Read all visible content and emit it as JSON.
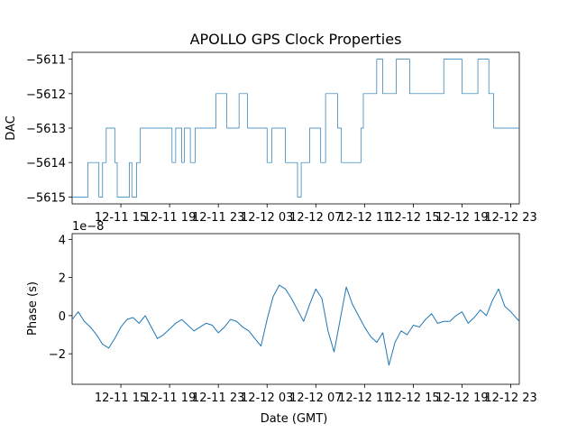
{
  "chart_data": [
    {
      "type": "line",
      "title": "APOLLO GPS Clock Properties",
      "ylabel": "DAC",
      "xlabel": "",
      "x_tick_labels": [
        "12-11 15",
        "12-11 19",
        "12-11 23",
        "12-12 03",
        "12-12 07",
        "12-12 11",
        "12-12 15",
        "12-12 19",
        "12-12 23"
      ],
      "x_ticks_hours": [
        15,
        19,
        23,
        27,
        31,
        35,
        39,
        43,
        47
      ],
      "xlim_hours": [
        11.0,
        47.7
      ],
      "y_ticks": [
        -5611,
        -5612,
        -5613,
        -5614,
        -5615
      ],
      "y_tick_labels": [
        "−5611",
        "−5612",
        "−5613",
        "−5614",
        "−5615"
      ],
      "ylim": [
        -5615.2,
        -5610.8
      ],
      "color": "#1f77b4",
      "series": [
        {
          "x": [
            11.0,
            12.3,
            12.3,
            13.2,
            13.2,
            13.5,
            13.5,
            13.8,
            13.8,
            14.5,
            14.5,
            14.7,
            14.7,
            15.7,
            15.7,
            15.9,
            15.9,
            16.3,
            16.3,
            16.6,
            16.6,
            19.2,
            19.2,
            19.5,
            19.5,
            20.0,
            20.0,
            20.2,
            20.2,
            20.7,
            20.7,
            21.1,
            21.1,
            22.8,
            22.8,
            23.7,
            23.7,
            24.7,
            24.7,
            25.4,
            25.4,
            27.0,
            27.0,
            27.4,
            27.4,
            28.5,
            28.5,
            29.5,
            29.5,
            29.8,
            29.8,
            30.5,
            30.5,
            31.4,
            31.4,
            31.8,
            31.8,
            32.8,
            32.8,
            33.1,
            33.1,
            34.7,
            34.7,
            34.9,
            34.9,
            36.0,
            36.0,
            36.5,
            36.5,
            37.6,
            37.6,
            38.7,
            38.7,
            41.5,
            41.5,
            43.0,
            43.0,
            44.3,
            44.3,
            45.2,
            45.2,
            45.6,
            45.6,
            47.7
          ],
          "values": [
            -5615,
            -5615,
            -5614,
            -5614,
            -5615,
            -5615,
            -5614,
            -5614,
            -5613,
            -5613,
            -5614,
            -5614,
            -5615,
            -5615,
            -5614,
            -5614,
            -5615,
            -5615,
            -5614,
            -5614,
            -5613,
            -5613,
            -5614,
            -5614,
            -5613,
            -5613,
            -5614,
            -5614,
            -5613,
            -5613,
            -5614,
            -5614,
            -5613,
            -5613,
            -5612,
            -5612,
            -5613,
            -5613,
            -5612,
            -5612,
            -5613,
            -5613,
            -5614,
            -5614,
            -5613,
            -5613,
            -5614,
            -5614,
            -5615,
            -5615,
            -5614,
            -5614,
            -5613,
            -5613,
            -5614,
            -5614,
            -5612,
            -5612,
            -5613,
            -5613,
            -5614,
            -5614,
            -5613,
            -5613,
            -5612,
            -5612,
            -5611,
            -5611,
            -5612,
            -5612,
            -5611,
            -5611,
            -5612,
            -5612,
            -5611,
            -5611,
            -5612,
            -5612,
            -5611,
            -5611,
            -5612,
            -5612,
            -5613,
            -5613
          ]
        }
      ]
    },
    {
      "type": "line",
      "title": "",
      "ylabel": "Phase (s)",
      "xlabel": "Date (GMT)",
      "offset_text": "1e−8",
      "x_tick_labels": [
        "12-11 15",
        "12-11 19",
        "12-11 23",
        "12-12 03",
        "12-12 07",
        "12-12 11",
        "12-12 15",
        "12-12 19",
        "12-12 23"
      ],
      "x_ticks_hours": [
        15,
        19,
        23,
        27,
        31,
        35,
        39,
        43,
        47
      ],
      "xlim_hours": [
        11.0,
        47.7
      ],
      "y_ticks": [
        4,
        2,
        0,
        -2
      ],
      "y_tick_labels": [
        "4",
        "2",
        "0",
        "−2"
      ],
      "ylim": [
        -3.6,
        4.3
      ],
      "color": "#1f77b4",
      "series": [
        {
          "x": [
            11.0,
            11.5,
            12.0,
            12.5,
            13.0,
            13.5,
            14.0,
            14.5,
            15.0,
            15.5,
            16.0,
            16.5,
            17.0,
            17.5,
            18.0,
            18.5,
            19.0,
            19.5,
            20.0,
            20.5,
            21.0,
            21.5,
            22.0,
            22.5,
            23.0,
            23.5,
            24.0,
            24.5,
            25.0,
            25.5,
            26.0,
            26.5,
            27.0,
            27.5,
            28.0,
            28.5,
            29.0,
            29.5,
            30.0,
            30.5,
            31.0,
            31.5,
            32.0,
            32.5,
            33.0,
            33.5,
            34.0,
            34.5,
            35.0,
            35.5,
            36.0,
            36.5,
            37.0,
            37.5,
            38.0,
            38.5,
            39.0,
            39.5,
            40.0,
            40.5,
            41.0,
            41.5,
            42.0,
            42.5,
            43.0,
            43.5,
            44.0,
            44.5,
            45.0,
            45.5,
            46.0,
            46.5,
            47.0,
            47.7
          ],
          "values": [
            -0.2,
            0.2,
            -0.3,
            -0.6,
            -1.0,
            -1.5,
            -1.7,
            -1.2,
            -0.6,
            -0.2,
            -0.1,
            -0.4,
            0.0,
            -0.6,
            -1.2,
            -1.0,
            -0.7,
            -0.4,
            -0.2,
            -0.5,
            -0.8,
            -0.6,
            -0.4,
            -0.5,
            -0.9,
            -0.6,
            -0.2,
            -0.3,
            -0.6,
            -0.8,
            -1.2,
            -1.6,
            -0.2,
            1.0,
            1.6,
            1.4,
            0.9,
            0.3,
            -0.3,
            0.6,
            1.4,
            0.9,
            -0.8,
            -1.9,
            -0.2,
            1.5,
            0.6,
            0.0,
            -0.6,
            -1.1,
            -1.4,
            -0.9,
            -2.6,
            -1.4,
            -0.8,
            -1.0,
            -0.5,
            -0.6,
            -0.2,
            0.1,
            -0.4,
            -0.3,
            -0.3,
            0.0,
            0.2,
            -0.4,
            -0.1,
            0.3,
            0.0,
            0.8,
            1.4,
            0.5,
            0.2,
            -0.3
          ]
        }
      ]
    }
  ]
}
